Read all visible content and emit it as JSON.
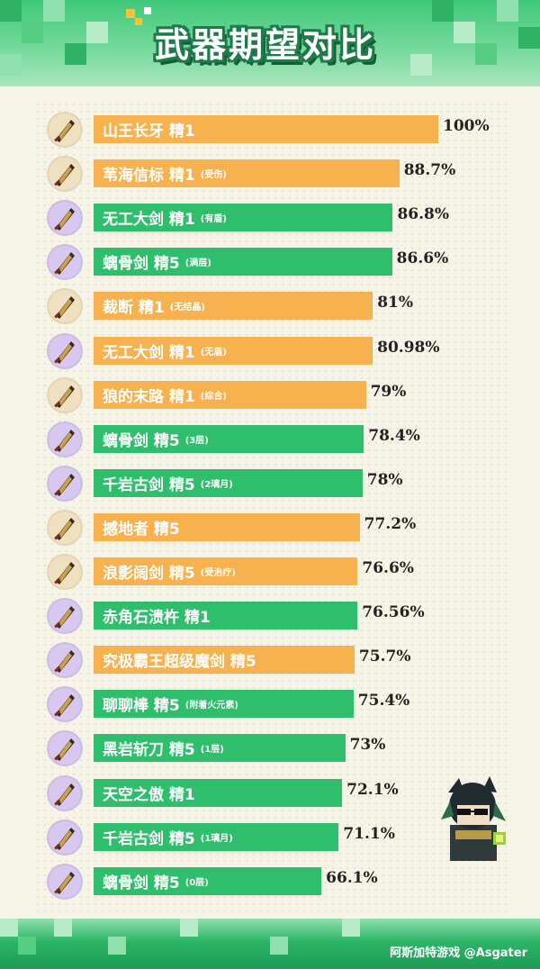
{
  "title": "武器期望对比",
  "footer_text": "阿斯加特游戏 @Asgater",
  "colors": {
    "orange": "#f7b24f",
    "green": "#2fbf6c"
  },
  "chart_data": {
    "type": "bar",
    "orientation": "horizontal",
    "title": "武器期望对比",
    "xlim": [
      0,
      100
    ],
    "unit": "%",
    "categories": [
      {
        "name": "山王长牙 精1",
        "note": "",
        "value": 100,
        "label": "100%",
        "color": "orange",
        "icon": "greatsword-icon"
      },
      {
        "name": "苇海信标 精1",
        "note": "(受伤)",
        "value": 88.7,
        "label": "88.7%",
        "color": "orange",
        "icon": "greatsword-icon"
      },
      {
        "name": "无工大剑 精1",
        "note": "(有盾)",
        "value": 86.8,
        "label": "86.8%",
        "color": "green",
        "icon": "greatsword-icon"
      },
      {
        "name": "螭骨剑 精5",
        "note": "(满层)",
        "value": 86.6,
        "label": "86.6%",
        "color": "green",
        "icon": "greatsword-icon"
      },
      {
        "name": "裁断 精1",
        "note": "(无结晶)",
        "value": 81,
        "label": "81%",
        "color": "orange",
        "icon": "greatsword-icon"
      },
      {
        "name": "无工大剑 精1",
        "note": "(无盾)",
        "value": 80.98,
        "label": "80.98%",
        "color": "orange",
        "icon": "greatsword-icon"
      },
      {
        "name": "狼的末路 精1",
        "note": "(综合)",
        "value": 79,
        "label": "79%",
        "color": "orange",
        "icon": "greatsword-icon"
      },
      {
        "name": "螭骨剑 精5",
        "note": "(3层)",
        "value": 78.4,
        "label": "78.4%",
        "color": "green",
        "icon": "greatsword-icon"
      },
      {
        "name": "千岩古剑 精5",
        "note": "(2璃月)",
        "value": 78,
        "label": "78%",
        "color": "green",
        "icon": "greatsword-icon"
      },
      {
        "name": "撼地者 精5",
        "note": "",
        "value": 77.2,
        "label": "77.2%",
        "color": "orange",
        "icon": "greatsword-icon"
      },
      {
        "name": "浪影阔剑 精5",
        "note": "(受治疗)",
        "value": 76.6,
        "label": "76.6%",
        "color": "orange",
        "icon": "greatsword-icon"
      },
      {
        "name": "赤角石溃杵 精1",
        "note": "",
        "value": 76.56,
        "label": "76.56%",
        "color": "green",
        "icon": "greatsword-icon"
      },
      {
        "name": "究极霸王超级魔剑 精5",
        "note": "",
        "value": 75.7,
        "label": "75.7%",
        "color": "orange",
        "icon": "greatsword-icon"
      },
      {
        "name": "聊聊棒 精5",
        "note": "(附着火元素)",
        "value": 75.4,
        "label": "75.4%",
        "color": "green",
        "icon": "greatsword-icon"
      },
      {
        "name": "黑岩斩刀 精5",
        "note": "(1层)",
        "value": 73,
        "label": "73%",
        "color": "green",
        "icon": "greatsword-icon"
      },
      {
        "name": "天空之傲 精1",
        "note": "",
        "value": 72.1,
        "label": "72.1%",
        "color": "green",
        "icon": "greatsword-icon"
      },
      {
        "name": "千岩古剑 精5",
        "note": "(1璃月)",
        "value": 71.1,
        "label": "71.1%",
        "color": "green",
        "icon": "greatsword-icon"
      },
      {
        "name": "螭骨剑 精5",
        "note": "(0层)",
        "value": 66.1,
        "label": "66.1%",
        "color": "green",
        "icon": "greatsword-icon"
      }
    ]
  }
}
